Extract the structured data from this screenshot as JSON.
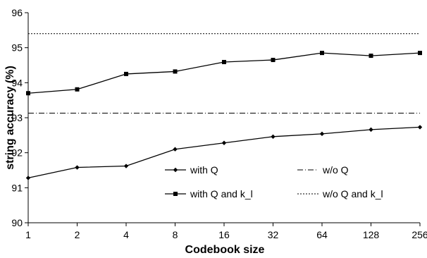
{
  "chart_data": {
    "type": "line",
    "xlabel": "Codebook size",
    "ylabel": "string accuracy (%)",
    "categories": [
      "1",
      "2",
      "4",
      "8",
      "16",
      "32",
      "64",
      "128",
      "256"
    ],
    "ylim": [
      90,
      96
    ],
    "yticks": [
      "90",
      "91",
      "92",
      "93",
      "94",
      "95",
      "96"
    ],
    "grid": false,
    "series": [
      {
        "name": "with Q",
        "marker": "diamond",
        "values": [
          91.28,
          91.58,
          91.62,
          92.1,
          92.28,
          92.46,
          92.54,
          92.66,
          92.73
        ]
      },
      {
        "name": "with Q and k_l",
        "marker": "square",
        "values": [
          93.7,
          93.81,
          94.25,
          94.32,
          94.59,
          94.65,
          94.85,
          94.77,
          94.85
        ]
      },
      {
        "name": "w/o Q",
        "style": "dash-dot",
        "constant": 93.13
      },
      {
        "name": "w/o Q and k_l",
        "style": "dotted",
        "constant": 95.4
      }
    ],
    "legend": {
      "placement": "lower-right",
      "entries": [
        "with Q",
        "w/o Q",
        "with Q and k_l",
        "w/o Q and k_l"
      ]
    }
  }
}
